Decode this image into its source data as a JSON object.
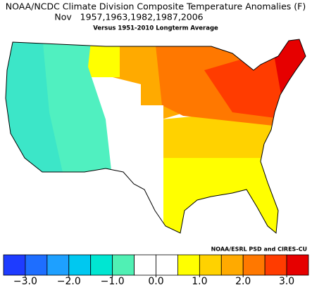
{
  "title": "NOAA/NCDC Climate Division Composite Temperature Anomalies (F)",
  "period": "Nov   1957,1963,1982,1987,2006",
  "subtitle": "Versus 1951-2010 Longterm Average",
  "credit": "NOAA/ESRL PSD and CIRES-CU",
  "colorbar": {
    "bounds": [
      -3.5,
      -3,
      -2.5,
      -2,
      -1.5,
      -1,
      -0.5,
      0,
      0.5,
      1,
      1.5,
      2,
      2.5,
      3,
      3.5
    ],
    "colors": [
      "#1e3cff",
      "#1e6eff",
      "#1ea0ff",
      "#00c8f0",
      "#00e6d2",
      "#50f0b4",
      "#ffffff",
      "#ffffff",
      "#ffff00",
      "#ffd200",
      "#ffaa00",
      "#ff7800",
      "#ff3c00",
      "#e60000"
    ],
    "ticks": [
      {
        "value": -3,
        "label": "−3.0"
      },
      {
        "value": -2,
        "label": "−2.0"
      },
      {
        "value": -1,
        "label": "−1.0"
      },
      {
        "value": 0,
        "label": "0.0"
      },
      {
        "value": 1,
        "label": "1.0"
      },
      {
        "value": 2,
        "label": "2.0"
      },
      {
        "value": 3,
        "label": "3.0"
      }
    ]
  }
}
